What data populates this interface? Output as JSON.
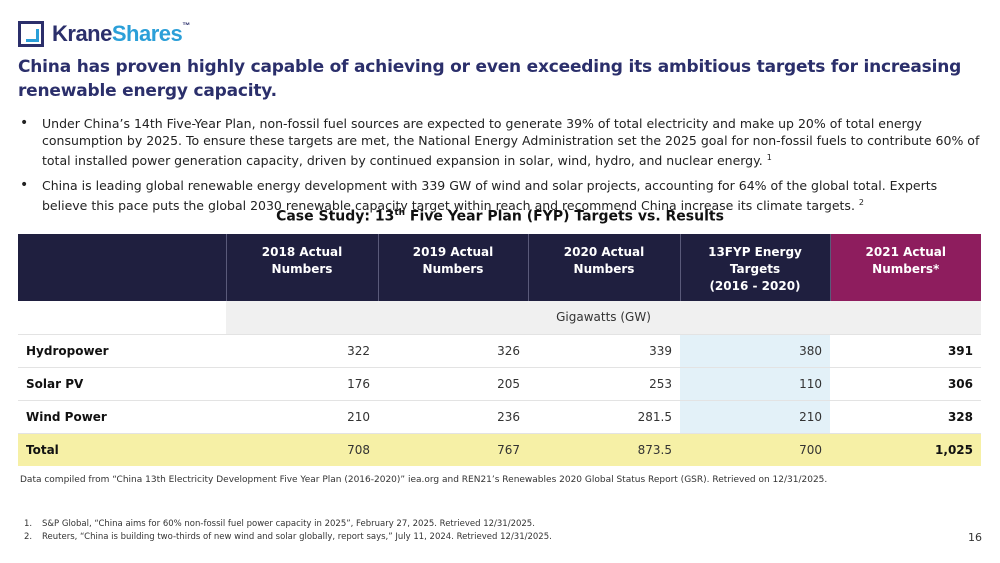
{
  "logo": {
    "krane": "Krane",
    "shares": "Shares",
    "tm": "™"
  },
  "headline": "China has proven highly capable of achieving or even exceeding its ambitious targets for increasing renewable energy capacity.",
  "bullets": [
    {
      "text": "Under China’s 14th Five-Year Plan, non-fossil fuel sources are expected to generate 39% of total electricity and make up 20% of total energy consumption by 2025. To ensure these targets are met, the National Energy Administration set the 2025 goal for non-fossil fuels to contribute 60% of total installed power generation capacity, driven by continued expansion in solar, wind, hydro, and nuclear energy.",
      "ref": "1"
    },
    {
      "text": "China is leading global renewable energy development with 339 GW of wind and solar projects, accounting for 64% of the global total. Experts believe this pace puts the global 2030 renewable capacity target within reach and recommend China increase its climate targets.",
      "ref": "2"
    }
  ],
  "case_study": {
    "title_pre": "Case Study: 13",
    "title_sup": "th",
    "title_post": " Five Year Plan (FYP) Targets vs. Results"
  },
  "table": {
    "headers": {
      "c2018": "2018 Actual Numbers",
      "c2019": "2019 Actual Numbers",
      "c2020": "2020 Actual Numbers",
      "c13_line1": "13FYP Energy",
      "c13_line2": "Targets",
      "c13_line3": "(2016 - 2020)",
      "c2021_line1": "2021 Actual",
      "c2021_line2": "Numbers*"
    },
    "unit": "Gigawatts (GW)",
    "rows": [
      {
        "label": "Hydropower",
        "v2018": "322",
        "v2019": "326",
        "v2020": "339",
        "target": "380",
        "v2021": "391"
      },
      {
        "label": "Solar PV",
        "v2018": "176",
        "v2019": "205",
        "v2020": "253",
        "target": "110",
        "v2021": "306"
      },
      {
        "label": "Wind Power",
        "v2018": "210",
        "v2019": "236",
        "v2020": "281.5",
        "target": "210",
        "v2021": "328"
      }
    ],
    "total": {
      "label": "Total",
      "v2018": "708",
      "v2019": "767",
      "v2020": "873.5",
      "target": "700",
      "v2021": "1,025"
    }
  },
  "source": "Data compiled from “China 13th Electricity Development Five Year Plan (2016-2020)” iea.org and REN21’s Renewables 2020 Global Status Report (GSR). Retrieved on 12/31/2025.",
  "footnotes": [
    {
      "n": "1.",
      "text": "S&P Global, “China aims for 60% non-fossil fuel power capacity in 2025”, February 27, 2025. Retrieved 12/31/2025."
    },
    {
      "n": "2.",
      "text": "Reuters, “China is building two-thirds of new wind and solar globally, report says,” July 11, 2024. Retrieved 12/31/2025."
    }
  ],
  "page_number": "16"
}
